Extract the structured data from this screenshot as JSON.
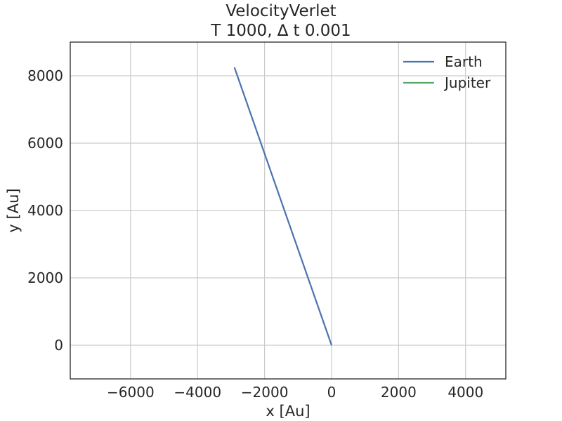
{
  "chart_data": {
    "type": "line",
    "title": "VelocityVerlet",
    "subtitle": "T 1000, ∆ t 0.001",
    "xlabel": "x [Au]",
    "ylabel": "y [Au]",
    "xlim": [
      -7800,
      5200
    ],
    "ylim": [
      -1000,
      9000
    ],
    "xticks": [
      -6000,
      -4000,
      -2000,
      0,
      2000,
      4000
    ],
    "xtick_labels": [
      "−6000",
      "−4000",
      "−2000",
      "0",
      "2000",
      "4000"
    ],
    "yticks": [
      0,
      2000,
      4000,
      6000,
      8000
    ],
    "ytick_labels": [
      "0",
      "2000",
      "4000",
      "6000",
      "8000"
    ],
    "grid": true,
    "legend_position": "top-right",
    "series": [
      {
        "name": "Earth",
        "color": "#4c72b0",
        "x": [
          0,
          -2900
        ],
        "y": [
          0,
          8250
        ]
      },
      {
        "name": "Jupiter",
        "color": "#55a868",
        "x": [
          0,
          5
        ],
        "y": [
          0,
          -5
        ]
      }
    ]
  }
}
